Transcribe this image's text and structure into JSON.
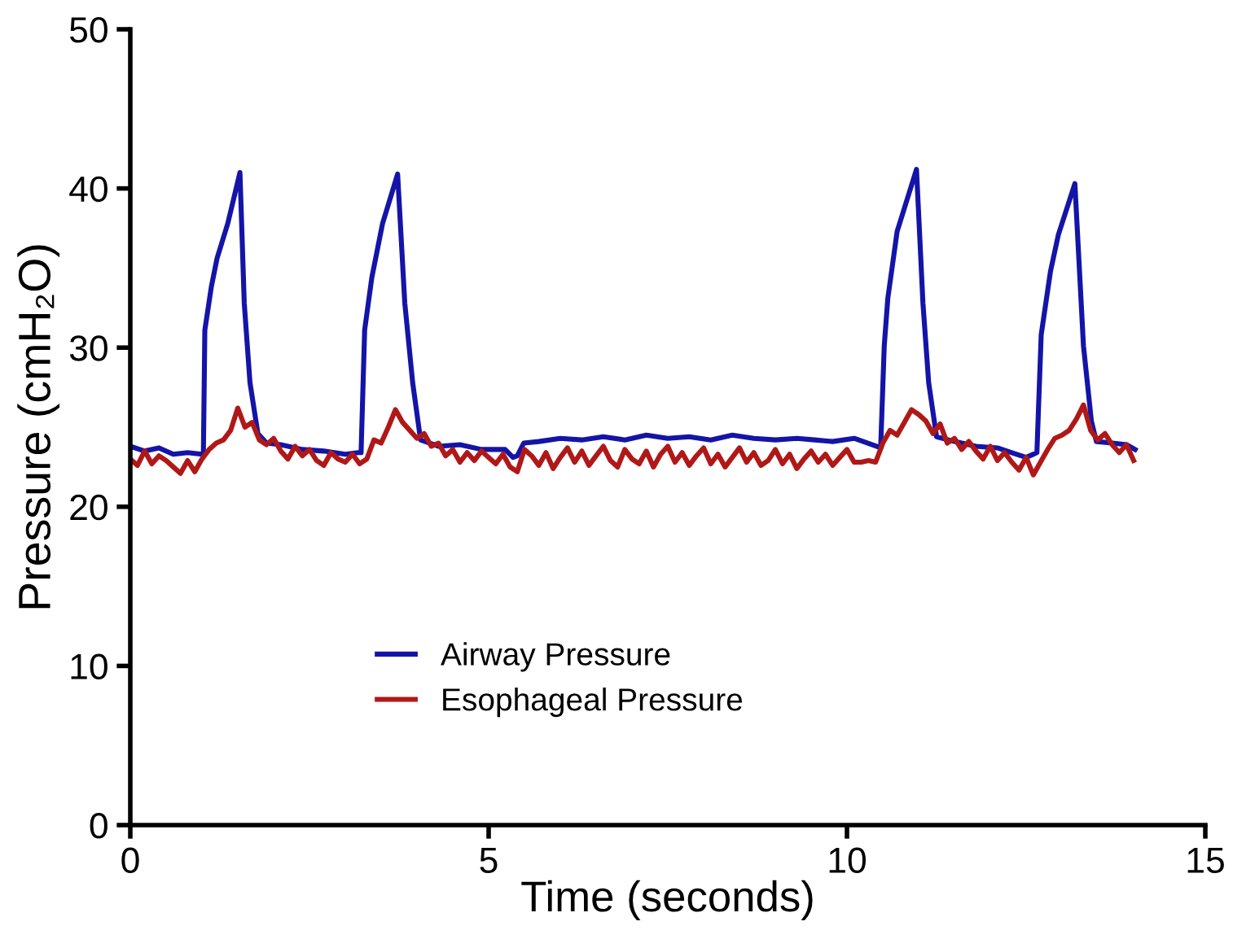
{
  "chart_data": {
    "type": "line",
    "xlabel": "Time (seconds)",
    "ylabel": "Pressure (cmH₂O)",
    "xlim": [
      0,
      15
    ],
    "xticks": [
      0,
      5,
      10,
      15
    ],
    "ylim": [
      0,
      50
    ],
    "yticks": [
      0,
      10,
      20,
      30,
      40,
      50
    ],
    "grid": false,
    "legend": "bottom",
    "marker": "none",
    "line_style": "solid",
    "series": [
      {
        "name": "Airway Pressure",
        "color": "#1414a8",
        "x": [
          0.0,
          0.2,
          0.4,
          0.6,
          0.8,
          1.0,
          1.02,
          1.04,
          1.13,
          1.21,
          1.36,
          1.53,
          1.59,
          1.67,
          1.78,
          1.9,
          2.1,
          2.4,
          2.7,
          3.0,
          3.18,
          3.22,
          3.27,
          3.37,
          3.52,
          3.73,
          3.83,
          3.94,
          4.05,
          4.3,
          4.6,
          4.9,
          5.23,
          5.34,
          5.4,
          5.49,
          5.7,
          6.0,
          6.3,
          6.6,
          6.9,
          7.2,
          7.5,
          7.8,
          8.1,
          8.4,
          8.7,
          9.0,
          9.3,
          9.55,
          9.8,
          10.1,
          10.41,
          10.47,
          10.52,
          10.57,
          10.7,
          10.97,
          11.06,
          11.14,
          11.25,
          11.5,
          11.8,
          12.1,
          12.3,
          12.5,
          12.65,
          12.71,
          12.84,
          12.95,
          13.18,
          13.3,
          13.41,
          13.48,
          13.7,
          13.9,
          14.02
        ],
        "values": [
          23.8,
          23.5,
          23.7,
          23.3,
          23.4,
          23.3,
          23.4,
          31.1,
          33.8,
          35.6,
          37.8,
          41.0,
          32.8,
          27.8,
          24.6,
          24.0,
          23.9,
          23.6,
          23.5,
          23.3,
          23.4,
          23.4,
          31.1,
          34.4,
          37.8,
          40.9,
          32.8,
          27.8,
          24.2,
          23.8,
          23.9,
          23.6,
          23.6,
          23.1,
          23.2,
          24.0,
          24.1,
          24.3,
          24.2,
          24.4,
          24.2,
          24.5,
          24.3,
          24.4,
          24.2,
          24.5,
          24.3,
          24.2,
          24.3,
          24.2,
          24.1,
          24.3,
          23.8,
          23.7,
          30.1,
          33.1,
          37.3,
          41.2,
          32.8,
          27.8,
          24.4,
          24.1,
          23.8,
          23.7,
          23.4,
          23.1,
          23.4,
          30.8,
          34.8,
          37.1,
          40.3,
          30.1,
          25.4,
          24.1,
          24.0,
          23.9,
          23.6
        ]
      },
      {
        "name": "Esophageal Pressure",
        "color": "#b01818",
        "x": [
          0.0,
          0.1,
          0.2,
          0.3,
          0.4,
          0.5,
          0.6,
          0.7,
          0.8,
          0.9,
          1.0,
          1.1,
          1.2,
          1.3,
          1.4,
          1.5,
          1.6,
          1.7,
          1.8,
          1.9,
          2.0,
          2.1,
          2.2,
          2.3,
          2.4,
          2.5,
          2.6,
          2.7,
          2.8,
          2.9,
          3.0,
          3.1,
          3.2,
          3.3,
          3.4,
          3.5,
          3.6,
          3.7,
          3.8,
          3.9,
          4.0,
          4.1,
          4.2,
          4.3,
          4.4,
          4.5,
          4.6,
          4.7,
          4.8,
          4.9,
          5.0,
          5.1,
          5.2,
          5.3,
          5.4,
          5.5,
          5.6,
          5.7,
          5.8,
          5.9,
          6.0,
          6.1,
          6.2,
          6.3,
          6.4,
          6.5,
          6.6,
          6.7,
          6.8,
          6.9,
          7.0,
          7.1,
          7.2,
          7.3,
          7.4,
          7.5,
          7.6,
          7.7,
          7.8,
          7.9,
          8.0,
          8.1,
          8.2,
          8.3,
          8.4,
          8.5,
          8.6,
          8.7,
          8.8,
          8.9,
          9.0,
          9.1,
          9.2,
          9.3,
          9.4,
          9.5,
          9.6,
          9.7,
          9.8,
          9.9,
          10.0,
          10.1,
          10.2,
          10.3,
          10.4,
          10.5,
          10.6,
          10.7,
          10.8,
          10.9,
          11.0,
          11.1,
          11.2,
          11.3,
          11.4,
          11.5,
          11.6,
          11.7,
          11.8,
          11.9,
          12.0,
          12.1,
          12.2,
          12.3,
          12.4,
          12.5,
          12.6,
          12.7,
          12.8,
          12.9,
          13.0,
          13.1,
          13.2,
          13.3,
          13.4,
          13.5,
          13.6,
          13.7,
          13.8,
          13.9,
          14.0
        ],
        "values": [
          23.0,
          22.6,
          23.5,
          22.7,
          23.2,
          22.9,
          22.5,
          22.1,
          22.9,
          22.2,
          23.0,
          23.6,
          24.0,
          24.2,
          24.8,
          26.2,
          25.0,
          25.3,
          24.2,
          23.9,
          24.3,
          23.5,
          23.0,
          23.8,
          23.2,
          23.6,
          22.9,
          22.6,
          23.4,
          23.0,
          22.8,
          23.3,
          22.7,
          23.0,
          24.2,
          24.0,
          25.0,
          26.1,
          25.3,
          24.8,
          24.3,
          24.6,
          23.8,
          24.0,
          23.2,
          23.6,
          22.8,
          23.4,
          22.9,
          23.5,
          23.1,
          22.7,
          23.3,
          22.5,
          22.2,
          23.6,
          23.2,
          22.6,
          23.4,
          22.4,
          23.1,
          23.7,
          22.8,
          23.5,
          22.6,
          23.2,
          23.8,
          22.9,
          22.5,
          23.6,
          23.0,
          22.7,
          23.5,
          22.5,
          23.3,
          23.8,
          22.8,
          23.4,
          22.6,
          23.2,
          23.7,
          22.7,
          23.3,
          22.5,
          23.1,
          23.7,
          22.8,
          23.4,
          22.6,
          22.9,
          23.6,
          22.7,
          23.3,
          22.4,
          23.0,
          23.5,
          22.8,
          23.3,
          22.6,
          23.1,
          23.6,
          22.8,
          22.8,
          22.9,
          22.8,
          24.0,
          24.8,
          24.5,
          25.3,
          26.1,
          25.8,
          25.4,
          24.6,
          25.2,
          24.0,
          24.3,
          23.6,
          24.1,
          23.5,
          23.0,
          23.8,
          22.9,
          23.4,
          22.8,
          22.3,
          23.1,
          22.0,
          22.8,
          23.6,
          24.3,
          24.5,
          24.8,
          25.5,
          26.4,
          24.8,
          24.2,
          24.6,
          23.9,
          23.4,
          23.9,
          22.9
        ]
      }
    ]
  }
}
